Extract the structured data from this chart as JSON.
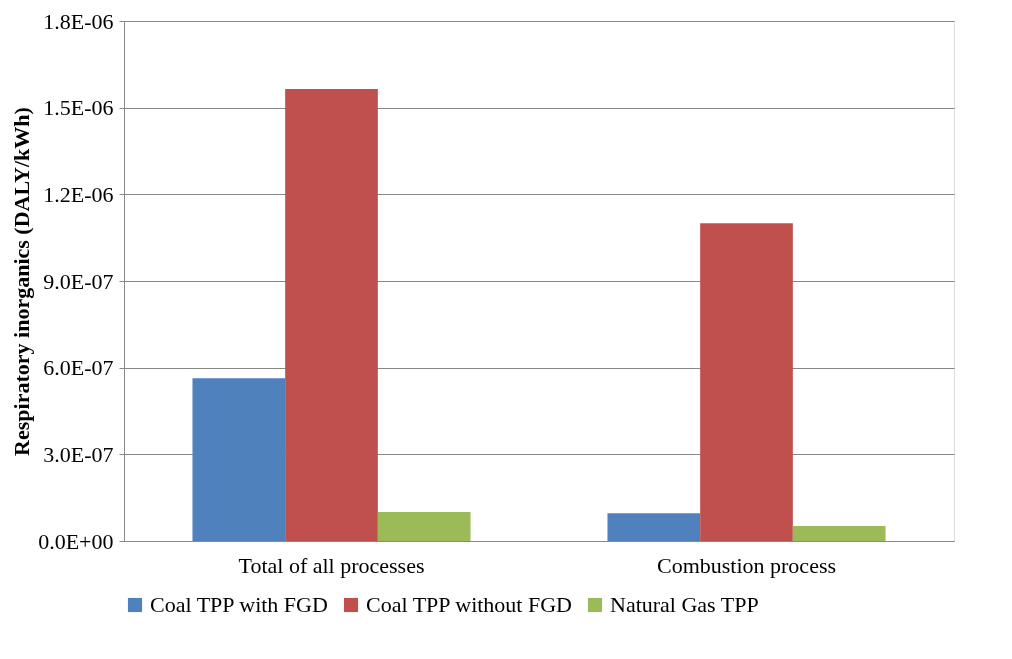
{
  "chart_data": {
    "type": "bar",
    "ylabel": "Respiratory inorganics (DALY/kWh)",
    "categories": [
      "Total of all processes",
      "Combustion process"
    ],
    "series": [
      {
        "name": "Coal TPP with FGD",
        "color": "#4f81bd",
        "values": [
          5.63e-07,
          9.6e-08
        ]
      },
      {
        "name": "Coal TPP without FGD",
        "color": "#c0504d",
        "values": [
          1.565e-06,
          1.1e-06
        ]
      },
      {
        "name": "Natural Gas TPP",
        "color": "#9bbb59",
        "values": [
          1e-07,
          5.2e-08
        ]
      }
    ],
    "ylim": [
      0,
      1.8e-06
    ],
    "yticks": [
      {
        "value": 0,
        "label": "0.0E+00"
      },
      {
        "value": 3e-07,
        "label": "3.0E-07"
      },
      {
        "value": 6e-07,
        "label": "6.0E-07"
      },
      {
        "value": 9e-07,
        "label": "9.0E-07"
      },
      {
        "value": 1.2e-06,
        "label": "1.2E-06"
      },
      {
        "value": 1.5e-06,
        "label": "1.5E-06"
      },
      {
        "value": 1.8e-06,
        "label": "1.8E-06"
      }
    ],
    "grid": "y",
    "legend": "bottom"
  }
}
